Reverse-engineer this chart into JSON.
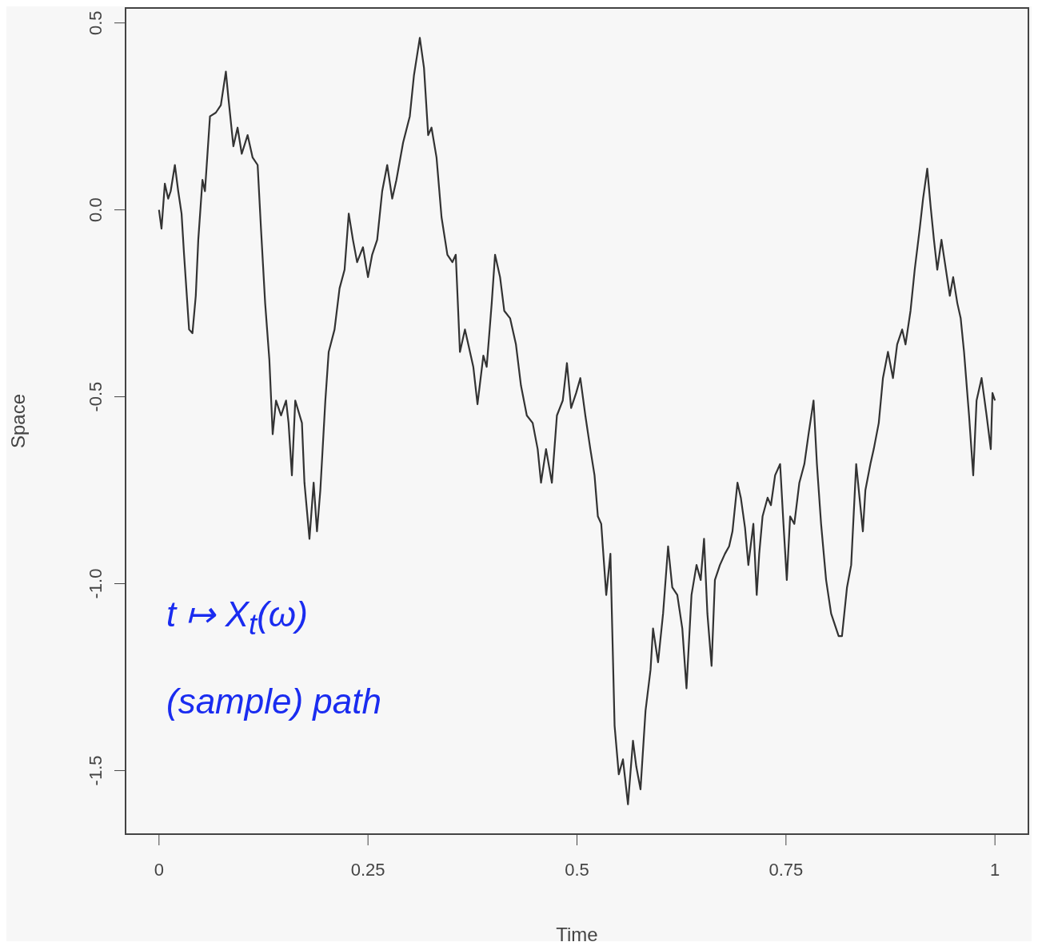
{
  "chart_data": {
    "type": "line",
    "xlabel": "Time",
    "ylabel": "Space",
    "annotations": [
      "t ↦ X$_{t}$(ω)",
      "(sample) path"
    ],
    "xlim": [
      -0.04,
      1.04
    ],
    "ylim": [
      -1.67,
      0.54
    ],
    "xticks": [
      0,
      0.25,
      0.5,
      0.75,
      1
    ],
    "yticks": [
      {
        "value": 0.5,
        "label": "0.5"
      },
      {
        "value": 0,
        "label": "0.0"
      },
      {
        "value": -0.5,
        "label": "-0.5"
      },
      {
        "value": -1,
        "label": "-1.0"
      },
      {
        "value": -1.5,
        "label": "-1.5"
      }
    ],
    "grid": false,
    "legend": false,
    "marker": "none",
    "line_style": "solid",
    "series": [
      {
        "color": "#333333",
        "x": [
          0,
          0.003,
          0.007,
          0.011,
          0.014,
          0.019,
          0.023,
          0.027,
          0.03,
          0.036,
          0.04,
          0.044,
          0.047,
          0.052,
          0.055,
          0.061,
          0.068,
          0.074,
          0.08,
          0.083,
          0.089,
          0.094,
          0.099,
          0.106,
          0.112,
          0.118,
          0.122,
          0.127,
          0.132,
          0.136,
          0.14,
          0.146,
          0.152,
          0.155,
          0.159,
          0.163,
          0.171,
          0.174,
          0.18,
          0.185,
          0.189,
          0.193,
          0.199,
          0.203,
          0.21,
          0.216,
          0.222,
          0.227,
          0.232,
          0.237,
          0.244,
          0.25,
          0.255,
          0.261,
          0.267,
          0.273,
          0.279,
          0.284,
          0.292,
          0.3,
          0.305,
          0.312,
          0.317,
          0.322,
          0.326,
          0.332,
          0.338,
          0.345,
          0.351,
          0.355,
          0.36,
          0.366,
          0.37,
          0.376,
          0.381,
          0.388,
          0.392,
          0.398,
          0.402,
          0.408,
          0.413,
          0.42,
          0.427,
          0.433,
          0.44,
          0.447,
          0.453,
          0.457,
          0.463,
          0.47,
          0.476,
          0.483,
          0.488,
          0.493,
          0.499,
          0.504,
          0.51,
          0.516,
          0.521,
          0.525,
          0.529,
          0.535,
          0.54,
          0.545,
          0.55,
          0.555,
          0.561,
          0.567,
          0.571,
          0.576,
          0.582,
          0.588,
          0.591,
          0.597,
          0.603,
          0.609,
          0.614,
          0.62,
          0.626,
          0.631,
          0.637,
          0.643,
          0.648,
          0.652,
          0.656,
          0.661,
          0.665,
          0.671,
          0.677,
          0.682,
          0.686,
          0.692,
          0.696,
          0.701,
          0.705,
          0.711,
          0.715,
          0.718,
          0.722,
          0.728,
          0.732,
          0.737,
          0.743,
          0.747,
          0.751,
          0.755,
          0.76,
          0.766,
          0.772,
          0.777,
          0.783,
          0.787,
          0.792,
          0.798,
          0.804,
          0.813,
          0.817,
          0.823,
          0.828,
          0.834,
          0.838,
          0.842,
          0.845,
          0.851,
          0.855,
          0.861,
          0.866,
          0.872,
          0.878,
          0.883,
          0.889,
          0.893,
          0.899,
          0.904,
          0.91,
          0.914,
          0.919,
          0.923,
          0.927,
          0.931,
          0.936,
          0.94,
          0.946,
          0.95,
          0.955,
          0.959,
          0.963,
          0.969,
          0.974,
          0.978,
          0.984,
          0.99,
          0.995,
          0.997,
          1.0
        ],
        "values": [
          0,
          -0.05,
          0.07,
          0.03,
          0.05,
          0.12,
          0.05,
          -0.01,
          -0.12,
          -0.32,
          -0.33,
          -0.23,
          -0.08,
          0.08,
          0.05,
          0.25,
          0.26,
          0.28,
          0.37,
          0.3,
          0.17,
          0.22,
          0.15,
          0.2,
          0.14,
          0.12,
          -0.05,
          -0.25,
          -0.4,
          -0.6,
          -0.51,
          -0.55,
          -0.51,
          -0.57,
          -0.71,
          -0.51,
          -0.57,
          -0.73,
          -0.88,
          -0.73,
          -0.86,
          -0.75,
          -0.51,
          -0.38,
          -0.32,
          -0.21,
          -0.16,
          -0.01,
          -0.08,
          -0.14,
          -0.1,
          -0.18,
          -0.12,
          -0.08,
          0.05,
          0.12,
          0.03,
          0.08,
          0.18,
          0.25,
          0.36,
          0.46,
          0.38,
          0.2,
          0.22,
          0.14,
          -0.02,
          -0.12,
          -0.14,
          -0.12,
          -0.38,
          -0.32,
          -0.36,
          -0.42,
          -0.52,
          -0.39,
          -0.42,
          -0.25,
          -0.12,
          -0.18,
          -0.27,
          -0.29,
          -0.36,
          -0.47,
          -0.55,
          -0.57,
          -0.64,
          -0.73,
          -0.64,
          -0.73,
          -0.55,
          -0.51,
          -0.41,
          -0.53,
          -0.49,
          -0.45,
          -0.55,
          -0.64,
          -0.71,
          -0.82,
          -0.84,
          -1.03,
          -0.92,
          -1.38,
          -1.51,
          -1.47,
          -1.59,
          -1.42,
          -1.49,
          -1.55,
          -1.34,
          -1.23,
          -1.12,
          -1.21,
          -1.08,
          -0.9,
          -1.01,
          -1.03,
          -1.12,
          -1.28,
          -1.03,
          -0.95,
          -0.99,
          -0.88,
          -1.08,
          -1.22,
          -0.99,
          -0.95,
          -0.92,
          -0.9,
          -0.86,
          -0.73,
          -0.77,
          -0.85,
          -0.95,
          -0.84,
          -1.03,
          -0.92,
          -0.82,
          -0.77,
          -0.79,
          -0.71,
          -0.68,
          -0.84,
          -0.99,
          -0.82,
          -0.84,
          -0.73,
          -0.68,
          -0.6,
          -0.51,
          -0.68,
          -0.84,
          -0.99,
          -1.08,
          -1.14,
          -1.14,
          -1.01,
          -0.95,
          -0.68,
          -0.77,
          -0.86,
          -0.75,
          -0.68,
          -0.64,
          -0.57,
          -0.45,
          -0.38,
          -0.45,
          -0.36,
          -0.32,
          -0.36,
          -0.27,
          -0.16,
          -0.05,
          0.03,
          0.11,
          0.01,
          -0.08,
          -0.16,
          -0.08,
          -0.14,
          -0.23,
          -0.18,
          -0.25,
          -0.29,
          -0.38,
          -0.55,
          -0.71,
          -0.51,
          -0.45,
          -0.55,
          -0.64,
          -0.49,
          -0.51
        ]
      }
    ]
  }
}
